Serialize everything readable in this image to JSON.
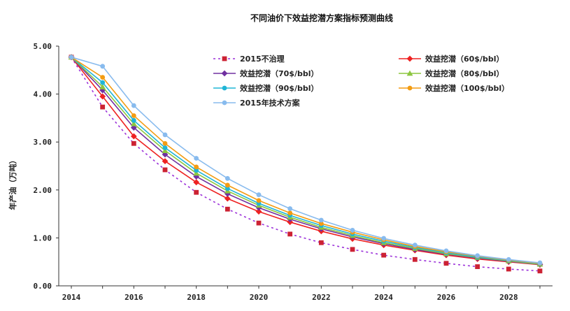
{
  "chart_data": {
    "type": "line",
    "title": "不同油价下效益挖潜方案指标预测曲线",
    "xlabel": "",
    "ylabel": "年产油（万吨）",
    "xlim": [
      2014,
      2029
    ],
    "ylim": [
      0,
      5
    ],
    "x_ticks": [
      2014,
      2016,
      2018,
      2020,
      2022,
      2024,
      2026,
      2028
    ],
    "y_ticks": [
      "0.00",
      "1.00",
      "2.00",
      "3.00",
      "4.00",
      "5.00"
    ],
    "y_tick_values": [
      0,
      1,
      2,
      3,
      4,
      5
    ],
    "x": [
      2014,
      2015,
      2016,
      2017,
      2018,
      2019,
      2020,
      2021,
      2022,
      2023,
      2024,
      2025,
      2026,
      2027,
      2028,
      2029
    ],
    "legend_position": "top",
    "series": [
      {
        "name": "2015不治理",
        "color": "#9b30d9",
        "dash": "3,4",
        "marker": "square",
        "marker_color": "#cc2233",
        "values": [
          4.77,
          3.73,
          2.97,
          2.42,
          1.95,
          1.6,
          1.31,
          1.08,
          0.9,
          0.76,
          0.64,
          0.55,
          0.47,
          0.4,
          0.35,
          0.31
        ]
      },
      {
        "name": "效益挖潜（60$/bbl）",
        "color": "#ee2222",
        "dash": "",
        "marker": "diamond",
        "marker_color": "#ee2222",
        "values": [
          4.77,
          3.95,
          3.12,
          2.6,
          2.16,
          1.82,
          1.55,
          1.33,
          1.14,
          0.98,
          0.85,
          0.74,
          0.64,
          0.56,
          0.5,
          0.44
        ]
      },
      {
        "name": "效益挖潜（70$/bbl）",
        "color": "#7030a0",
        "dash": "",
        "marker": "diamond",
        "marker_color": "#7030a0",
        "values": [
          4.77,
          4.08,
          3.3,
          2.74,
          2.28,
          1.92,
          1.63,
          1.39,
          1.19,
          1.02,
          0.88,
          0.76,
          0.66,
          0.58,
          0.51,
          0.45
        ]
      },
      {
        "name": "效益挖潜（80$/bbl）",
        "color": "#8cc63f",
        "dash": "",
        "marker": "triangle",
        "marker_color": "#8cc63f",
        "values": [
          4.77,
          4.15,
          3.38,
          2.82,
          2.35,
          1.98,
          1.68,
          1.43,
          1.22,
          1.05,
          0.9,
          0.78,
          0.67,
          0.59,
          0.52,
          0.45
        ]
      },
      {
        "name": "效益挖潜（90$/bbl）",
        "color": "#1fb5d6",
        "dash": "",
        "marker": "circle",
        "marker_color": "#1fb5d6",
        "values": [
          4.77,
          4.24,
          3.45,
          2.88,
          2.41,
          2.03,
          1.72,
          1.47,
          1.26,
          1.08,
          0.93,
          0.8,
          0.69,
          0.6,
          0.53,
          0.46
        ]
      },
      {
        "name": "效益挖潜（100$/bbl）",
        "color": "#f39c12",
        "dash": "",
        "marker": "circle",
        "marker_color": "#f39c12",
        "values": [
          4.77,
          4.35,
          3.55,
          2.97,
          2.48,
          2.1,
          1.78,
          1.52,
          1.3,
          1.12,
          0.96,
          0.82,
          0.71,
          0.62,
          0.54,
          0.47
        ]
      },
      {
        "name": "2015年技术方案",
        "color": "#88bbee",
        "dash": "",
        "marker": "circle",
        "marker_color": "#88bbee",
        "values": [
          4.77,
          4.58,
          3.76,
          3.15,
          2.66,
          2.24,
          1.9,
          1.61,
          1.37,
          1.16,
          0.99,
          0.85,
          0.73,
          0.63,
          0.55,
          0.48
        ]
      }
    ]
  }
}
